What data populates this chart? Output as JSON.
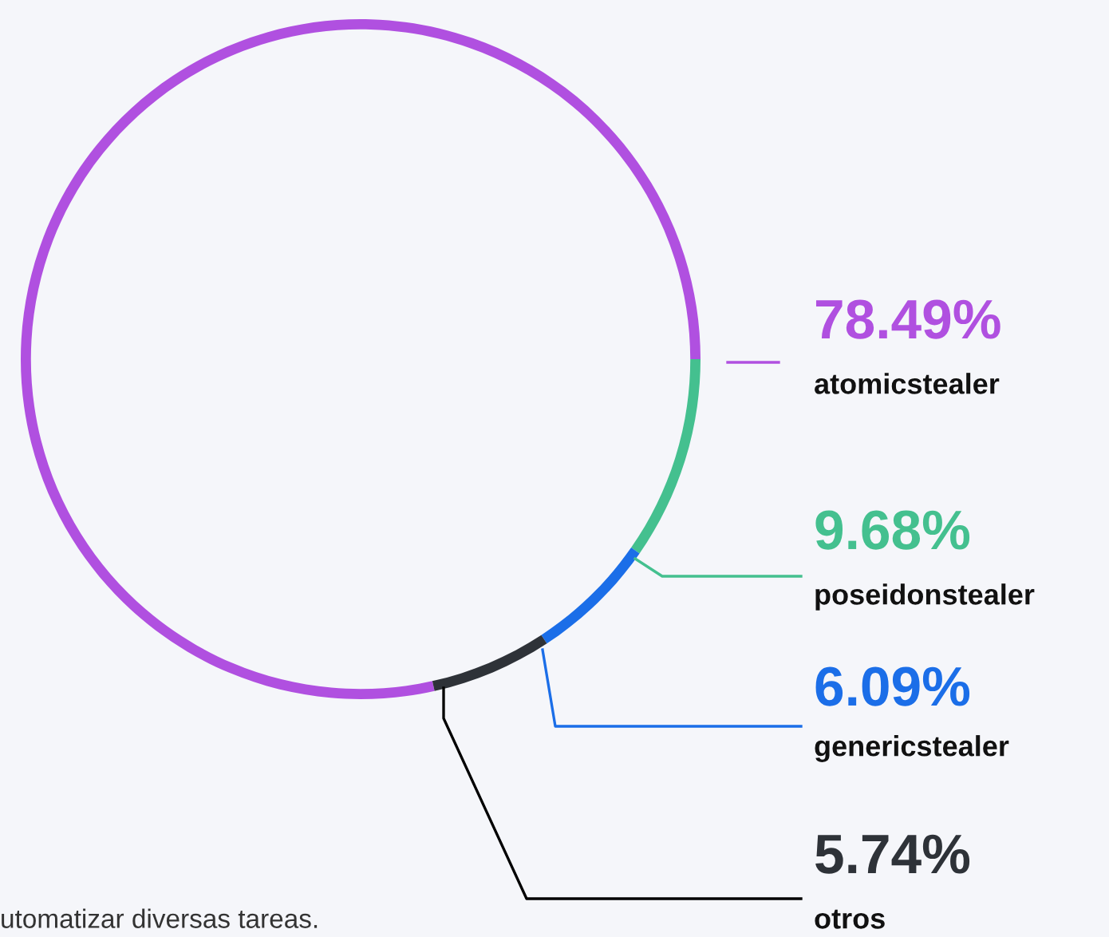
{
  "chart_data": {
    "type": "donut",
    "categories": [
      "atomicstealer",
      "poseidonstealer",
      "genericstealer",
      "otros"
    ],
    "values": [
      78.49,
      9.68,
      6.09,
      5.74
    ],
    "value_labels": [
      "78.49%",
      "9.68%",
      "6.09%",
      "5.74%"
    ],
    "colors": [
      "#b050e0",
      "#44c08f",
      "#1b6ee8",
      "#2e3238"
    ],
    "annotations": [
      "utomatizar diversas tareas."
    ]
  }
}
